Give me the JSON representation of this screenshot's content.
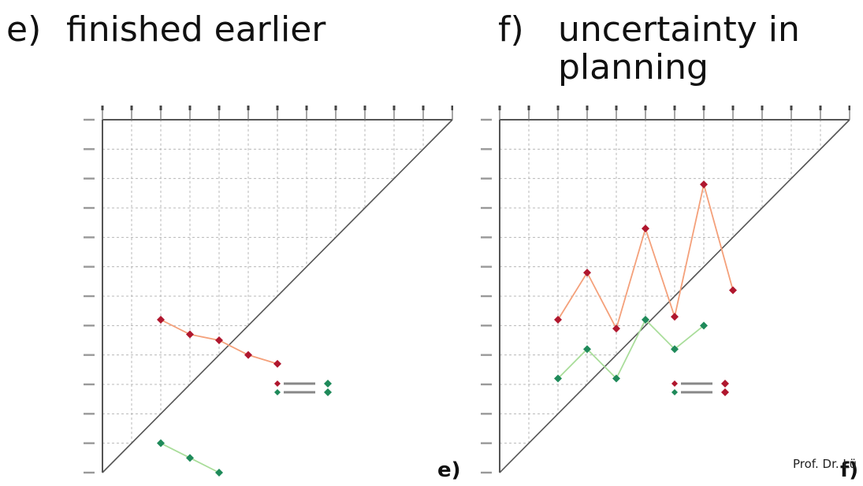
{
  "headings": {
    "e": {
      "letter": "e)",
      "lines": [
        "finished earlier"
      ]
    },
    "f": {
      "letter": "f)",
      "lines": [
        "uncertainty in",
        "planning"
      ]
    }
  },
  "corner_labels": {
    "e": "e)",
    "f": "f)"
  },
  "footer": "Prof. Dr. Lü",
  "colors": {
    "upper_series": "#b0172e",
    "upper_line": "#f4a07a",
    "lower_series": "#1f8a5a",
    "lower_line": "#a9dd9a",
    "grid": "#b8b8b8",
    "axis": "#555555"
  },
  "chart_data": [
    {
      "type": "line",
      "layout": "milestone-trend-triangle",
      "columns": 13,
      "rows": 13,
      "grid": true,
      "legend": "lower-right",
      "series": [
        {
          "marker": "diamond",
          "points": [
            [
              2,
              5.2
            ],
            [
              3,
              4.7
            ],
            [
              4,
              4.5
            ],
            [
              5,
              4.0
            ],
            [
              6,
              3.7
            ]
          ]
        },
        {
          "marker": "diamond",
          "points": [
            [
              2,
              1.0
            ],
            [
              3,
              0.5
            ],
            [
              4,
              0.0
            ]
          ]
        }
      ]
    },
    {
      "type": "line",
      "layout": "milestone-trend-triangle",
      "columns": 13,
      "rows": 13,
      "grid": true,
      "legend": "lower-right",
      "series": [
        {
          "marker": "diamond",
          "points": [
            [
              2,
              5.2
            ],
            [
              3,
              6.8
            ],
            [
              4,
              4.9
            ],
            [
              5,
              8.3
            ],
            [
              6,
              5.3
            ],
            [
              7,
              9.8
            ],
            [
              8,
              6.2
            ]
          ]
        },
        {
          "marker": "diamond",
          "points": [
            [
              2,
              3.2
            ],
            [
              3,
              4.2
            ],
            [
              4,
              3.2
            ],
            [
              5,
              5.2
            ],
            [
              6,
              4.2
            ],
            [
              7,
              5.0
            ]
          ]
        }
      ]
    }
  ]
}
